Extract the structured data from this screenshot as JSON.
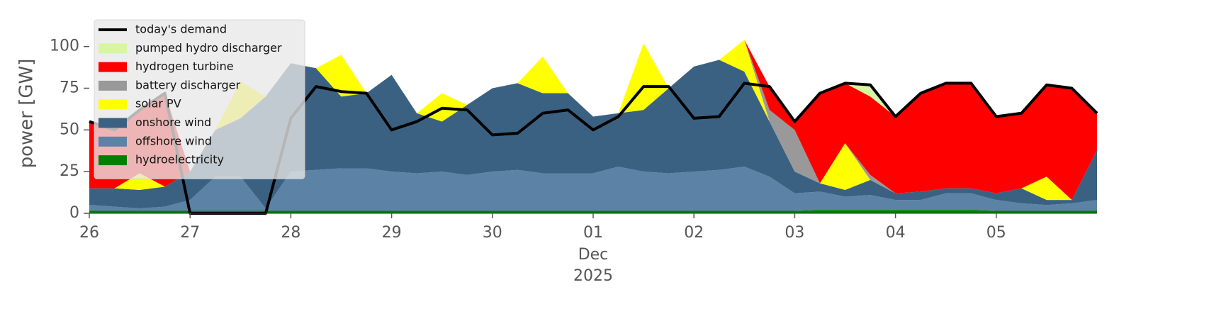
{
  "chart_data": {
    "type": "stacked-area",
    "ylabel": "power [GW]",
    "x": [
      0,
      0.25,
      0.5,
      0.75,
      1,
      1.25,
      1.5,
      1.75,
      2,
      2.25,
      2.5,
      2.75,
      3,
      3.25,
      3.5,
      3.75,
      4,
      4.25,
      4.5,
      4.75,
      5,
      5.25,
      5.5,
      5.75,
      6,
      6.25,
      6.5,
      6.75,
      7,
      7.25,
      7.5,
      7.75,
      8,
      8.25,
      8.5,
      8.75,
      9,
      9.25,
      9.5,
      9.75,
      10
    ],
    "xlim": [
      0,
      10
    ],
    "xticks": [
      {
        "value": 0,
        "label": "26"
      },
      {
        "value": 1,
        "label": "27"
      },
      {
        "value": 2,
        "label": "28"
      },
      {
        "value": 3,
        "label": "29"
      },
      {
        "value": 4,
        "label": "30"
      },
      {
        "value": 5,
        "label": "01",
        "sublabels": [
          "Dec",
          "2025"
        ]
      },
      {
        "value": 6,
        "label": "02"
      },
      {
        "value": 7,
        "label": "03"
      },
      {
        "value": 8,
        "label": "04"
      },
      {
        "value": 9,
        "label": "05"
      }
    ],
    "ylim": [
      0,
      116
    ],
    "yticks": [
      0,
      25,
      50,
      75,
      100
    ],
    "legend": "upper left",
    "series": [
      {
        "name": "today's demand",
        "type": "line",
        "color": "#000000",
        "values": [
          55,
          50,
          62,
          72,
          0,
          0,
          0,
          0,
          57,
          76,
          73,
          72,
          50,
          55,
          63,
          62,
          47,
          48,
          60,
          62,
          50,
          58,
          76,
          76,
          57,
          58,
          78,
          76,
          55,
          72,
          78,
          77,
          58,
          72,
          78,
          78,
          58,
          60,
          77,
          75,
          60
        ]
      },
      {
        "name": "pumped hydro discharger",
        "color": "#d8f5a2",
        "values": [
          0,
          0,
          0,
          0,
          0,
          0,
          0,
          0,
          0,
          0,
          0,
          0,
          0,
          0,
          0,
          0,
          0,
          0,
          0,
          0,
          0,
          0,
          0,
          0,
          0,
          0,
          0,
          0,
          0,
          0,
          0,
          7,
          0,
          0,
          0,
          0,
          0,
          0,
          0,
          0,
          0
        ]
      },
      {
        "name": "hydrogen turbine",
        "color": "#ff0000",
        "values": [
          40,
          35,
          38,
          56,
          0,
          0,
          0,
          0,
          0,
          0,
          0,
          0,
          0,
          0,
          0,
          0,
          0,
          0,
          0,
          0,
          0,
          0,
          0,
          0,
          0,
          0,
          0,
          14,
          5,
          54,
          36,
          47,
          46,
          59,
          63,
          63,
          46,
          45,
          55,
          67,
          22
        ]
      },
      {
        "name": "battery discharger",
        "color": "#999999",
        "values": [
          0,
          0,
          0,
          0,
          0,
          0,
          0,
          0,
          0,
          0,
          0,
          0,
          0,
          0,
          0,
          0,
          0,
          0,
          0,
          0,
          0,
          0,
          0,
          0,
          0,
          0,
          0,
          7,
          25,
          0,
          0,
          3,
          0,
          0,
          0,
          0,
          0,
          0,
          0,
          0,
          0
        ]
      },
      {
        "name": "solar PV",
        "color": "#ffff00",
        "values": [
          0,
          0,
          10,
          0,
          0,
          0,
          22,
          0,
          0,
          0,
          25,
          0,
          0,
          0,
          17,
          0,
          0,
          0,
          22,
          0,
          0,
          0,
          40,
          0,
          0,
          0,
          19,
          0,
          0,
          0,
          28,
          0,
          0,
          0,
          0,
          0,
          0,
          0,
          14,
          0,
          0
        ]
      },
      {
        "name": "onshore wind",
        "color": "#3b6182",
        "values": [
          10,
          11,
          11,
          12,
          17,
          28,
          35,
          67,
          65,
          61,
          43,
          45,
          58,
          36,
          30,
          42,
          50,
          52,
          48,
          48,
          34,
          32,
          37,
          51,
          63,
          66,
          57,
          33,
          13,
          5,
          4,
          9,
          4,
          5,
          3,
          3,
          4,
          9,
          3,
          2,
          30
        ]
      },
      {
        "name": "offshore wind",
        "color": "#5c82a5",
        "values": [
          3.5,
          2.5,
          1.5,
          2.5,
          6.5,
          20.5,
          20.5,
          1.5,
          23.5,
          24.5,
          25.5,
          25.5,
          23.5,
          22.5,
          23.5,
          21.5,
          23.5,
          24.5,
          22.5,
          22.5,
          22.5,
          26.5,
          23.5,
          22.5,
          23.5,
          24.5,
          26.5,
          20.5,
          10.5,
          11,
          8,
          9,
          6,
          6,
          10,
          10,
          6.5,
          4.5,
          3.5,
          4.5,
          6.5
        ]
      },
      {
        "name": "hydroelectricity",
        "color": "#008000",
        "values": [
          1.5,
          1.5,
          1.5,
          1.5,
          1.5,
          1.5,
          1.5,
          1.5,
          1.5,
          1.5,
          1.5,
          1.5,
          1.5,
          1.5,
          1.5,
          1.5,
          1.5,
          1.5,
          1.5,
          1.5,
          1.5,
          1.5,
          1.5,
          1.5,
          1.5,
          1.5,
          1.5,
          1.5,
          1.5,
          2,
          2,
          2,
          2,
          2,
          2,
          2,
          1.5,
          1.5,
          1.5,
          1.5,
          1.5
        ]
      }
    ]
  }
}
